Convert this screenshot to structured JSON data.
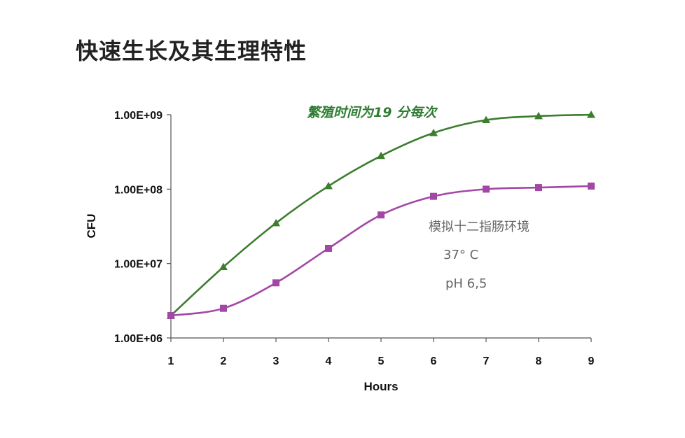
{
  "title": "快速生长及其生理特性",
  "chart_data": {
    "type": "line",
    "ylabel": "CFU",
    "xlabel": "Hours",
    "x": [
      1,
      2,
      3,
      4,
      5,
      6,
      7,
      8,
      9
    ],
    "xlim": [
      1,
      9
    ],
    "ylim": [
      1000000,
      1000000000
    ],
    "yscale": "log",
    "y_ticks": [
      1000000,
      10000000,
      100000000,
      1000000000
    ],
    "y_tick_labels": [
      "1.00E+06",
      "1.00E+07",
      "1.00E+08",
      "1.00E+09"
    ],
    "x_tick_labels": [
      "1",
      "2",
      "3",
      "4",
      "5",
      "6",
      "7",
      "8",
      "9"
    ],
    "grid": false,
    "series": [
      {
        "color": "#3c7d2e",
        "marker": "triangle",
        "values": [
          2000000,
          9000000,
          35000000,
          110000000,
          280000000,
          570000000,
          850000000,
          960000000,
          1000000000
        ]
      },
      {
        "color": "#a347a6",
        "marker": "square",
        "values": [
          2000000,
          2500000,
          5500000,
          16000000,
          45000000,
          80000000,
          100000000,
          105000000,
          110000000
        ]
      }
    ],
    "annotations": {
      "green_note": "繁殖时间为19 分每次",
      "gray_lines": [
        "模拟十二指肠环境",
        "37° C",
        "pH 6,5"
      ]
    }
  }
}
